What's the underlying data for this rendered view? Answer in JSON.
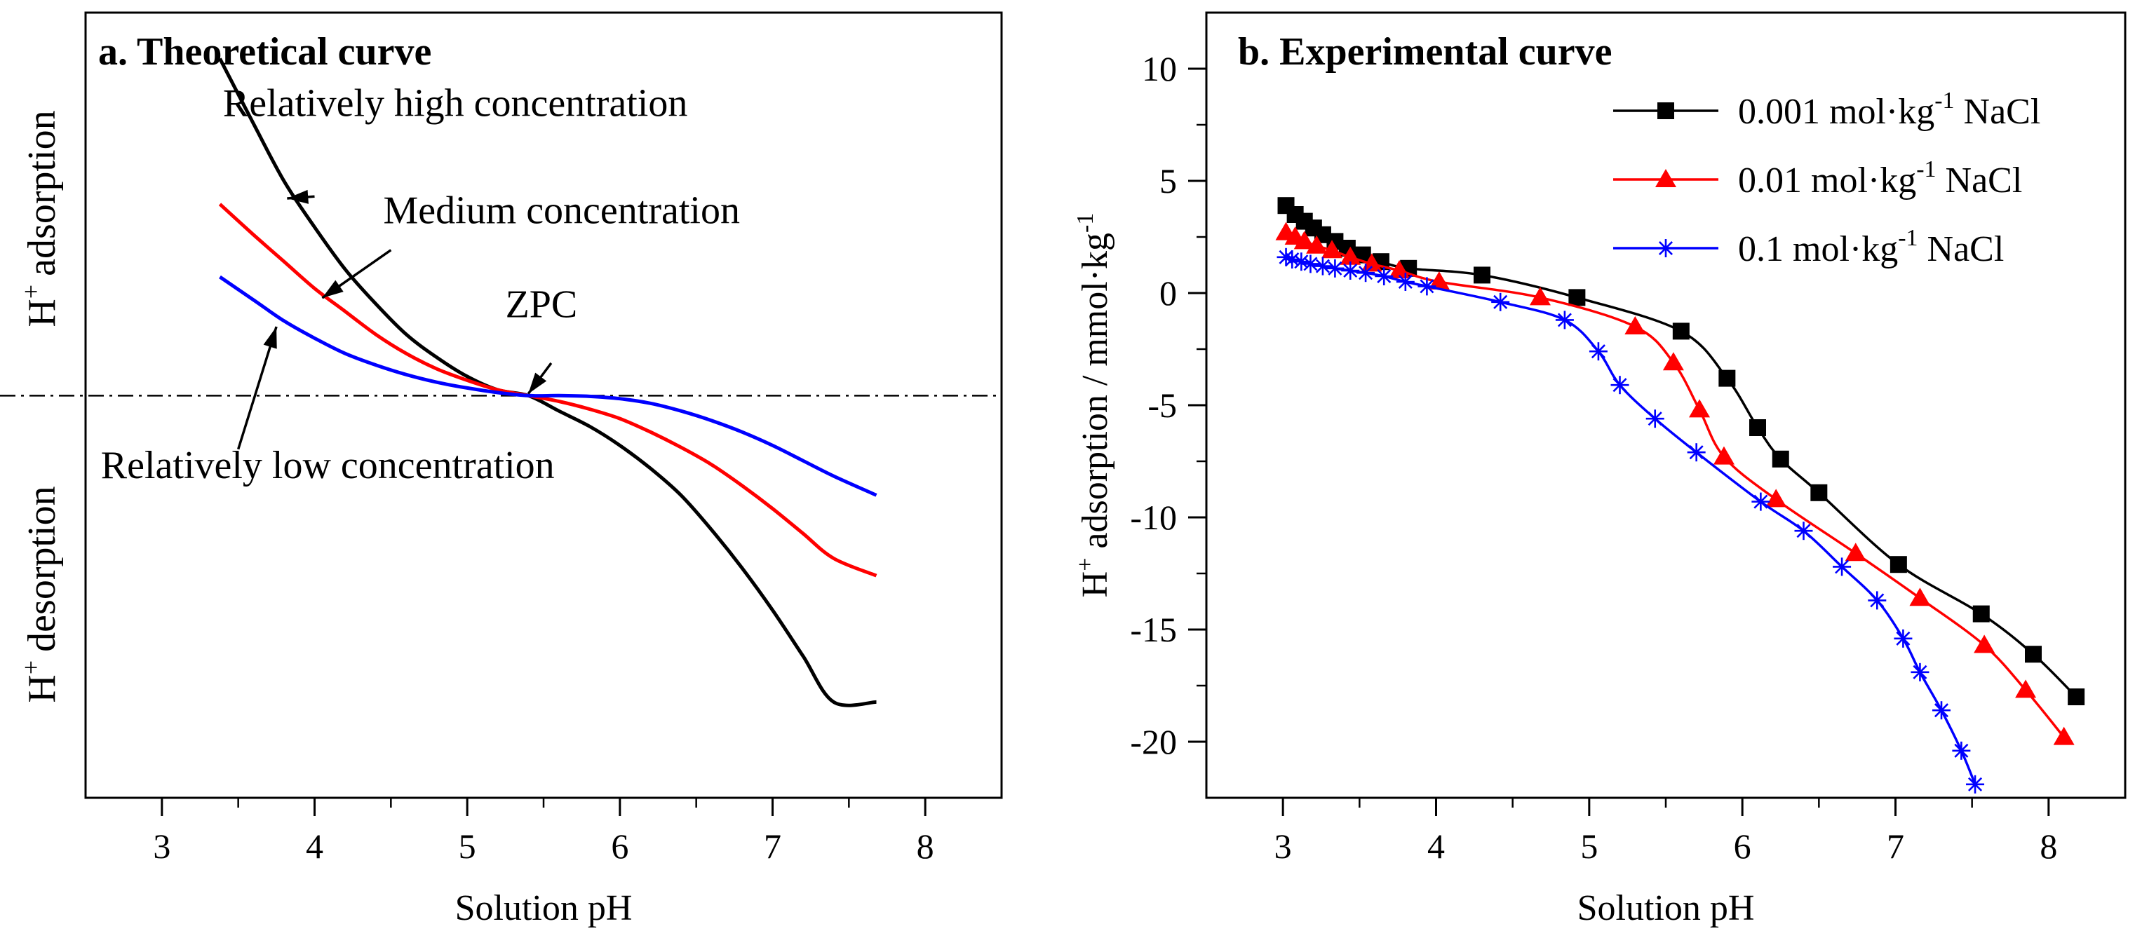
{
  "chart_data": [
    {
      "type": "line",
      "title": "a. Theoretical curve",
      "xlabel": "Solution pH",
      "ylabel_top": "adsorption",
      "ylabel_bottom": "desorption",
      "ylabel_prefix": "H",
      "ylabel_sup": "+",
      "xlim": [
        2.5,
        8.5
      ],
      "ylim": [
        -10.5,
        10
      ],
      "xticks": [
        3,
        4,
        5,
        6,
        7,
        8
      ],
      "zpc": {
        "label": "ZPC",
        "x": 5.4,
        "y": 0
      },
      "reference_line": {
        "y": 0,
        "style": "dash-dot"
      },
      "series": [
        {
          "name": "Relatively high concentration",
          "color": "#000000",
          "x": [
            3.38,
            3.6,
            3.8,
            4.0,
            4.2,
            4.4,
            4.6,
            4.8,
            5.0,
            5.2,
            5.4,
            5.6,
            5.8,
            6.0,
            6.2,
            6.4,
            6.6,
            6.8,
            7.0,
            7.2,
            7.4,
            7.68
          ],
          "y": [
            8.8,
            7.1,
            5.6,
            4.4,
            3.3,
            2.4,
            1.6,
            1.0,
            0.5,
            0.15,
            0.0,
            -0.4,
            -0.8,
            -1.3,
            -1.9,
            -2.6,
            -3.5,
            -4.5,
            -5.6,
            -6.8,
            -8.0,
            -8.0
          ]
        },
        {
          "name": "Medium concentration",
          "color": "#ff0000",
          "x": [
            3.38,
            3.6,
            3.8,
            4.0,
            4.2,
            4.4,
            4.6,
            4.8,
            5.0,
            5.2,
            5.4,
            5.6,
            5.8,
            6.0,
            6.2,
            6.4,
            6.6,
            6.8,
            7.0,
            7.2,
            7.4,
            7.68
          ],
          "y": [
            5.0,
            4.2,
            3.5,
            2.8,
            2.2,
            1.6,
            1.1,
            0.7,
            0.4,
            0.15,
            0.0,
            -0.15,
            -0.35,
            -0.6,
            -0.95,
            -1.35,
            -1.8,
            -2.35,
            -2.95,
            -3.6,
            -4.25,
            -4.7
          ]
        },
        {
          "name": "Relatively low concentration",
          "color": "#0000ff",
          "x": [
            3.38,
            3.6,
            3.8,
            4.0,
            4.2,
            4.4,
            4.6,
            4.8,
            5.0,
            5.2,
            5.4,
            5.6,
            5.8,
            6.0,
            6.2,
            6.4,
            6.6,
            6.8,
            7.0,
            7.2,
            7.4,
            7.68
          ],
          "y": [
            3.1,
            2.5,
            1.95,
            1.5,
            1.1,
            0.8,
            0.55,
            0.35,
            0.2,
            0.08,
            0.0,
            0.0,
            -0.02,
            -0.08,
            -0.2,
            -0.4,
            -0.65,
            -0.95,
            -1.3,
            -1.7,
            -2.1,
            -2.6
          ]
        }
      ],
      "annotations": [
        {
          "text": "Relatively high concentration",
          "from": [
            4.0,
            5.2
          ],
          "to": [
            3.82,
            5.15
          ]
        },
        {
          "text": "Medium concentration",
          "from": [
            4.5,
            3.8
          ],
          "to": [
            4.05,
            2.55
          ]
        },
        {
          "text": "Relatively low concentration",
          "from": [
            3.5,
            -1.4
          ],
          "to": [
            3.75,
            1.8
          ]
        },
        {
          "text": "ZPC",
          "from": [
            5.55,
            0.85
          ],
          "to": [
            5.4,
            0.05
          ]
        }
      ]
    },
    {
      "type": "line",
      "title": "b. Experimental curve",
      "xlabel": "Solution pH",
      "ylabel_prefix": "H",
      "ylabel_sup": "+",
      "ylabel": " adsorption / mmol·kg",
      "ylabel_sup2": "-1",
      "xlim": [
        2.5,
        8.5
      ],
      "ylim": [
        -22.5,
        12.5
      ],
      "xticks": [
        3,
        4,
        5,
        6,
        7,
        8
      ],
      "yticks": [
        -20,
        -15,
        -10,
        -5,
        0,
        5,
        10
      ],
      "legend_position": "top-right",
      "series": [
        {
          "name": "0.001 mol·kg-1 NaCl",
          "name_pre": "0.001 mol·kg",
          "name_sup": "-1",
          "name_post": " NaCl",
          "color": "#000000",
          "marker": "square",
          "x": [
            3.02,
            3.08,
            3.14,
            3.2,
            3.26,
            3.34,
            3.42,
            3.52,
            3.64,
            3.82,
            4.3,
            4.92,
            5.6,
            5.9,
            6.1,
            6.25,
            6.5,
            7.02,
            7.56,
            7.9,
            8.18
          ],
          "y": [
            3.9,
            3.5,
            3.2,
            2.9,
            2.6,
            2.3,
            2.0,
            1.7,
            1.4,
            1.1,
            0.8,
            -0.2,
            -1.7,
            -3.8,
            -6.0,
            -7.4,
            -8.9,
            -12.1,
            -14.3,
            -16.1,
            -18.0
          ]
        },
        {
          "name": "0.01 mol·kg-1 NaCl",
          "name_pre": "0.01 mol·kg",
          "name_sup": "-1",
          "name_post": " NaCl",
          "color": "#ff0000",
          "marker": "triangle",
          "x": [
            3.02,
            3.08,
            3.14,
            3.22,
            3.32,
            3.44,
            3.58,
            3.76,
            4.02,
            4.68,
            5.3,
            5.55,
            5.72,
            5.88,
            6.22,
            6.74,
            7.16,
            7.58,
            7.85,
            8.1
          ],
          "y": [
            2.7,
            2.5,
            2.3,
            2.1,
            1.9,
            1.6,
            1.3,
            1.0,
            0.5,
            -0.2,
            -1.5,
            -3.1,
            -5.2,
            -7.3,
            -9.2,
            -11.6,
            -13.6,
            -15.7,
            -17.7,
            -19.8
          ]
        },
        {
          "name": "0.1 mol·kg-1 NaCl",
          "name_pre": "0.1 mol·kg",
          "name_sup": "-1",
          "name_post": " NaCl",
          "color": "#0000ff",
          "marker": "asterisk",
          "x": [
            3.02,
            3.06,
            3.12,
            3.18,
            3.26,
            3.34,
            3.44,
            3.54,
            3.66,
            3.8,
            3.94,
            4.42,
            4.84,
            5.06,
            5.2,
            5.43,
            5.7,
            6.12,
            6.4,
            6.65,
            6.88,
            7.05,
            7.16,
            7.3,
            7.43,
            7.52
          ],
          "y": [
            1.6,
            1.5,
            1.4,
            1.3,
            1.2,
            1.1,
            1.0,
            0.9,
            0.75,
            0.5,
            0.3,
            -0.4,
            -1.2,
            -2.6,
            -4.1,
            -5.6,
            -7.1,
            -9.3,
            -10.6,
            -12.2,
            -13.7,
            -15.4,
            -16.9,
            -18.6,
            -20.4,
            -21.9
          ]
        }
      ]
    }
  ]
}
